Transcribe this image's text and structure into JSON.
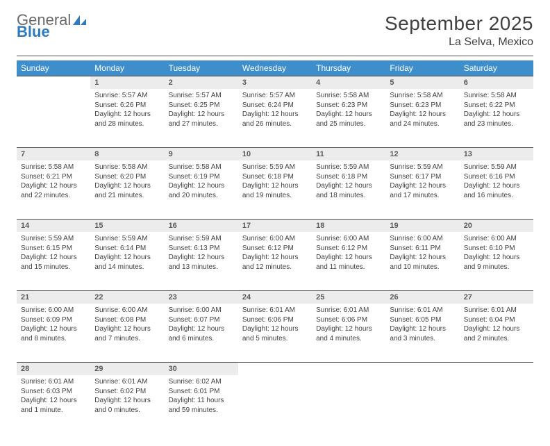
{
  "brand": {
    "general": "General",
    "blue": "Blue"
  },
  "title": "September 2025",
  "location": "La Selva, Mexico",
  "colors": {
    "header_bg": "#3f8ecc",
    "header_text": "#ffffff",
    "daynum_bg": "#ececec",
    "daynum_text": "#5a5a5a",
    "body_text": "#404040",
    "divider": "#4b4b4b",
    "logo_gray": "#6a6a6a",
    "logo_blue": "#2f7bbf"
  },
  "weekdays": [
    "Sunday",
    "Monday",
    "Tuesday",
    "Wednesday",
    "Thursday",
    "Friday",
    "Saturday"
  ],
  "days": {
    "1": {
      "sunrise": "5:57 AM",
      "sunset": "6:26 PM",
      "daylight": "12 hours and 28 minutes."
    },
    "2": {
      "sunrise": "5:57 AM",
      "sunset": "6:25 PM",
      "daylight": "12 hours and 27 minutes."
    },
    "3": {
      "sunrise": "5:57 AM",
      "sunset": "6:24 PM",
      "daylight": "12 hours and 26 minutes."
    },
    "4": {
      "sunrise": "5:58 AM",
      "sunset": "6:23 PM",
      "daylight": "12 hours and 25 minutes."
    },
    "5": {
      "sunrise": "5:58 AM",
      "sunset": "6:23 PM",
      "daylight": "12 hours and 24 minutes."
    },
    "6": {
      "sunrise": "5:58 AM",
      "sunset": "6:22 PM",
      "daylight": "12 hours and 23 minutes."
    },
    "7": {
      "sunrise": "5:58 AM",
      "sunset": "6:21 PM",
      "daylight": "12 hours and 22 minutes."
    },
    "8": {
      "sunrise": "5:58 AM",
      "sunset": "6:20 PM",
      "daylight": "12 hours and 21 minutes."
    },
    "9": {
      "sunrise": "5:58 AM",
      "sunset": "6:19 PM",
      "daylight": "12 hours and 20 minutes."
    },
    "10": {
      "sunrise": "5:59 AM",
      "sunset": "6:18 PM",
      "daylight": "12 hours and 19 minutes."
    },
    "11": {
      "sunrise": "5:59 AM",
      "sunset": "6:18 PM",
      "daylight": "12 hours and 18 minutes."
    },
    "12": {
      "sunrise": "5:59 AM",
      "sunset": "6:17 PM",
      "daylight": "12 hours and 17 minutes."
    },
    "13": {
      "sunrise": "5:59 AM",
      "sunset": "6:16 PM",
      "daylight": "12 hours and 16 minutes."
    },
    "14": {
      "sunrise": "5:59 AM",
      "sunset": "6:15 PM",
      "daylight": "12 hours and 15 minutes."
    },
    "15": {
      "sunrise": "5:59 AM",
      "sunset": "6:14 PM",
      "daylight": "12 hours and 14 minutes."
    },
    "16": {
      "sunrise": "5:59 AM",
      "sunset": "6:13 PM",
      "daylight": "12 hours and 13 minutes."
    },
    "17": {
      "sunrise": "6:00 AM",
      "sunset": "6:12 PM",
      "daylight": "12 hours and 12 minutes."
    },
    "18": {
      "sunrise": "6:00 AM",
      "sunset": "6:12 PM",
      "daylight": "12 hours and 11 minutes."
    },
    "19": {
      "sunrise": "6:00 AM",
      "sunset": "6:11 PM",
      "daylight": "12 hours and 10 minutes."
    },
    "20": {
      "sunrise": "6:00 AM",
      "sunset": "6:10 PM",
      "daylight": "12 hours and 9 minutes."
    },
    "21": {
      "sunrise": "6:00 AM",
      "sunset": "6:09 PM",
      "daylight": "12 hours and 8 minutes."
    },
    "22": {
      "sunrise": "6:00 AM",
      "sunset": "6:08 PM",
      "daylight": "12 hours and 7 minutes."
    },
    "23": {
      "sunrise": "6:00 AM",
      "sunset": "6:07 PM",
      "daylight": "12 hours and 6 minutes."
    },
    "24": {
      "sunrise": "6:01 AM",
      "sunset": "6:06 PM",
      "daylight": "12 hours and 5 minutes."
    },
    "25": {
      "sunrise": "6:01 AM",
      "sunset": "6:06 PM",
      "daylight": "12 hours and 4 minutes."
    },
    "26": {
      "sunrise": "6:01 AM",
      "sunset": "6:05 PM",
      "daylight": "12 hours and 3 minutes."
    },
    "27": {
      "sunrise": "6:01 AM",
      "sunset": "6:04 PM",
      "daylight": "12 hours and 2 minutes."
    },
    "28": {
      "sunrise": "6:01 AM",
      "sunset": "6:03 PM",
      "daylight": "12 hours and 1 minute."
    },
    "29": {
      "sunrise": "6:01 AM",
      "sunset": "6:02 PM",
      "daylight": "12 hours and 0 minutes."
    },
    "30": {
      "sunrise": "6:02 AM",
      "sunset": "6:01 PM",
      "daylight": "11 hours and 59 minutes."
    }
  },
  "labels": {
    "sunrise": "Sunrise: ",
    "sunset": "Sunset: ",
    "daylight": "Daylight: "
  },
  "grid": {
    "first_day_index": 1,
    "days_in_month": 30,
    "rows": 5
  }
}
